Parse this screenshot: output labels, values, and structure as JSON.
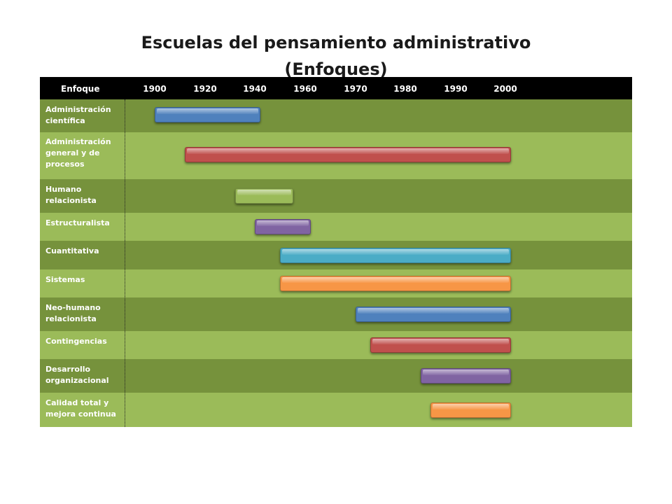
{
  "title_line1": "Escuelas del pensamiento administrativo",
  "title_line2": "(Enfoques)",
  "chart_data": {
    "type": "bar",
    "orientation": "horizontal-timeline",
    "header_label": "Enfoque",
    "x_ticks": [
      "1900",
      "1920",
      "1940",
      "1960",
      "1970",
      "1980",
      "1990",
      "2000"
    ],
    "bars": [
      {
        "label": "Administración científica",
        "start": 1900,
        "end": 1940,
        "color": "#4f81bd"
      },
      {
        "label": "Administración general y de procesos",
        "start": 1912,
        "end": 2000,
        "color": "#c0504d"
      },
      {
        "label": "Humano relacionista",
        "start": 1932,
        "end": 1953,
        "color": "#9bbb59"
      },
      {
        "label": "Estructuralista",
        "start": 1940,
        "end": 1960,
        "color": "#8064a2"
      },
      {
        "label": "Cuantitativa",
        "start": 1950,
        "end": 2000,
        "color": "#4bacc6"
      },
      {
        "label": "Sistemas",
        "start": 1950,
        "end": 2000,
        "color": "#f79646"
      },
      {
        "label": "Neo-humano relacionista",
        "start": 1970,
        "end": 2000,
        "color": "#4f81bd"
      },
      {
        "label": "Contingencias",
        "start": 1973,
        "end": 2000,
        "color": "#c0504d"
      },
      {
        "label": "Desarrollo organizacional",
        "start": 1983,
        "end": 2000,
        "color": "#8064a2"
      },
      {
        "label": "Calidad total y mejora continua",
        "start": 1985,
        "end": 2000,
        "color": "#f79646"
      }
    ],
    "row_colors": [
      "#76923c",
      "#9bbb59"
    ],
    "grid": false,
    "legend": "none"
  }
}
